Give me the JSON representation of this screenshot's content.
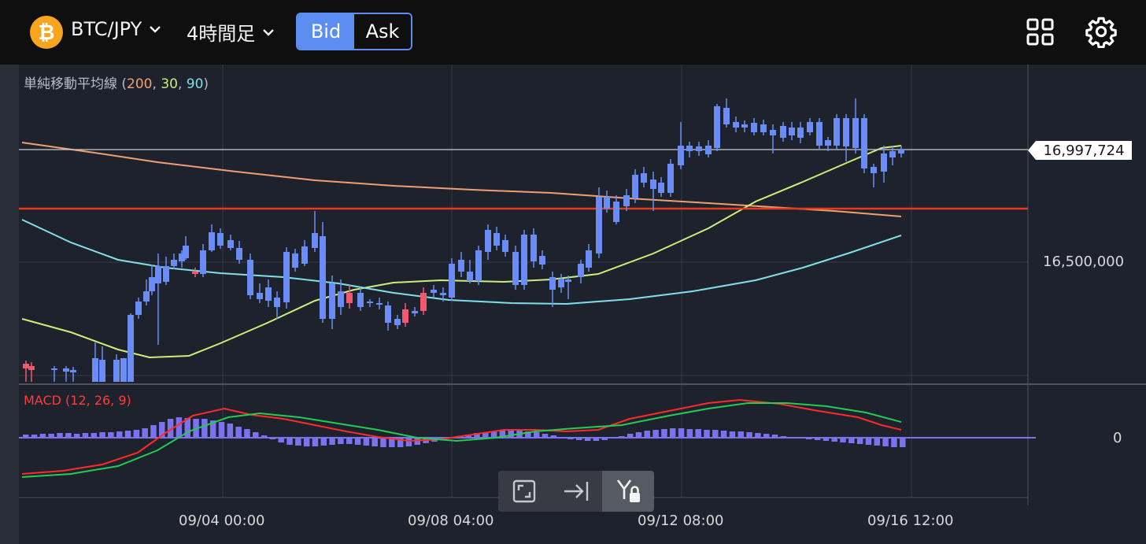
{
  "header": {
    "coin_icon": "bitcoin-icon",
    "coin_symbol": "₿",
    "pair_label": "BTC/JPY",
    "timeframe_label": "4時間足",
    "bid_label": "Bid",
    "ask_label": "Ask",
    "selected": "Bid",
    "icons": [
      "chevron-down-icon",
      "grid-layout-icon",
      "gear-icon"
    ]
  },
  "indicators": {
    "sma_name": "単純移動平均線",
    "sma_periods": [
      "200",
      "30",
      "90"
    ],
    "sma_colors": [
      "#f0a070",
      "#c8f07a",
      "#7fe0e8"
    ],
    "macd_label": "MACD (12, 26, 9)",
    "macd_color": "#ff3b3b"
  },
  "price_axis": {
    "current_price": "16,997,724",
    "tick": "16,500,000",
    "macd_zero": "0"
  },
  "time_axis": [
    "09/04 00:00",
    "09/08 04:00",
    "09/12 08:00",
    "09/16 12:00"
  ],
  "toolbar": {
    "icons": [
      "fullscreen-icon",
      "scroll-to-latest-icon",
      "y-axis-lock-icon"
    ]
  },
  "colors": {
    "up": "#f05a6e",
    "down": "#6c8cf5",
    "background": "#1e222d",
    "header": "#0f0f10",
    "accent": "#5b8ef0",
    "horizontal_line": "#e63a1e"
  }
}
